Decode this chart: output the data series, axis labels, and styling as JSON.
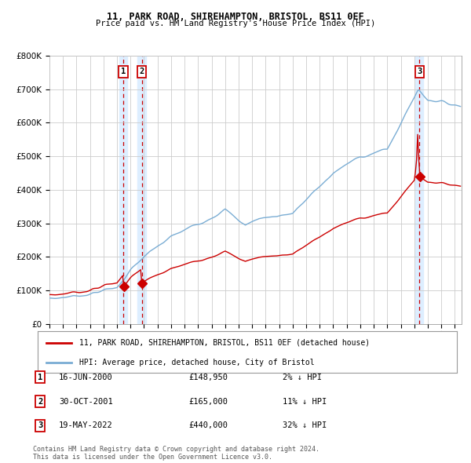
{
  "title1": "11, PARK ROAD, SHIREHAMPTON, BRISTOL, BS11 0EF",
  "title2": "Price paid vs. HM Land Registry's House Price Index (HPI)",
  "legend_red": "11, PARK ROAD, SHIREHAMPTON, BRISTOL, BS11 0EF (detached house)",
  "legend_blue": "HPI: Average price, detached house, City of Bristol",
  "sale1_label": "1",
  "sale1_date": "16-JUN-2000",
  "sale1_price": 148950,
  "sale1_pct": "2% ↓ HPI",
  "sale1_year": 2000.46,
  "sale2_label": "2",
  "sale2_date": "30-OCT-2001",
  "sale2_price": 165000,
  "sale2_pct": "11% ↓ HPI",
  "sale2_year": 2001.83,
  "sale3_label": "3",
  "sale3_date": "19-MAY-2022",
  "sale3_price": 440000,
  "sale3_pct": "32% ↓ HPI",
  "sale3_year": 2022.38,
  "ylim": [
    0,
    800000
  ],
  "xlim_start": 1995.0,
  "xlim_end": 2025.5,
  "background_color": "#ffffff",
  "grid_color": "#cccccc",
  "red_line_color": "#cc0000",
  "blue_line_color": "#7aadd4",
  "dashed_line_color": "#cc0000",
  "shade_color": "#ddeeff",
  "footnote1": "Contains HM Land Registry data © Crown copyright and database right 2024.",
  "footnote2": "This data is licensed under the Open Government Licence v3.0."
}
